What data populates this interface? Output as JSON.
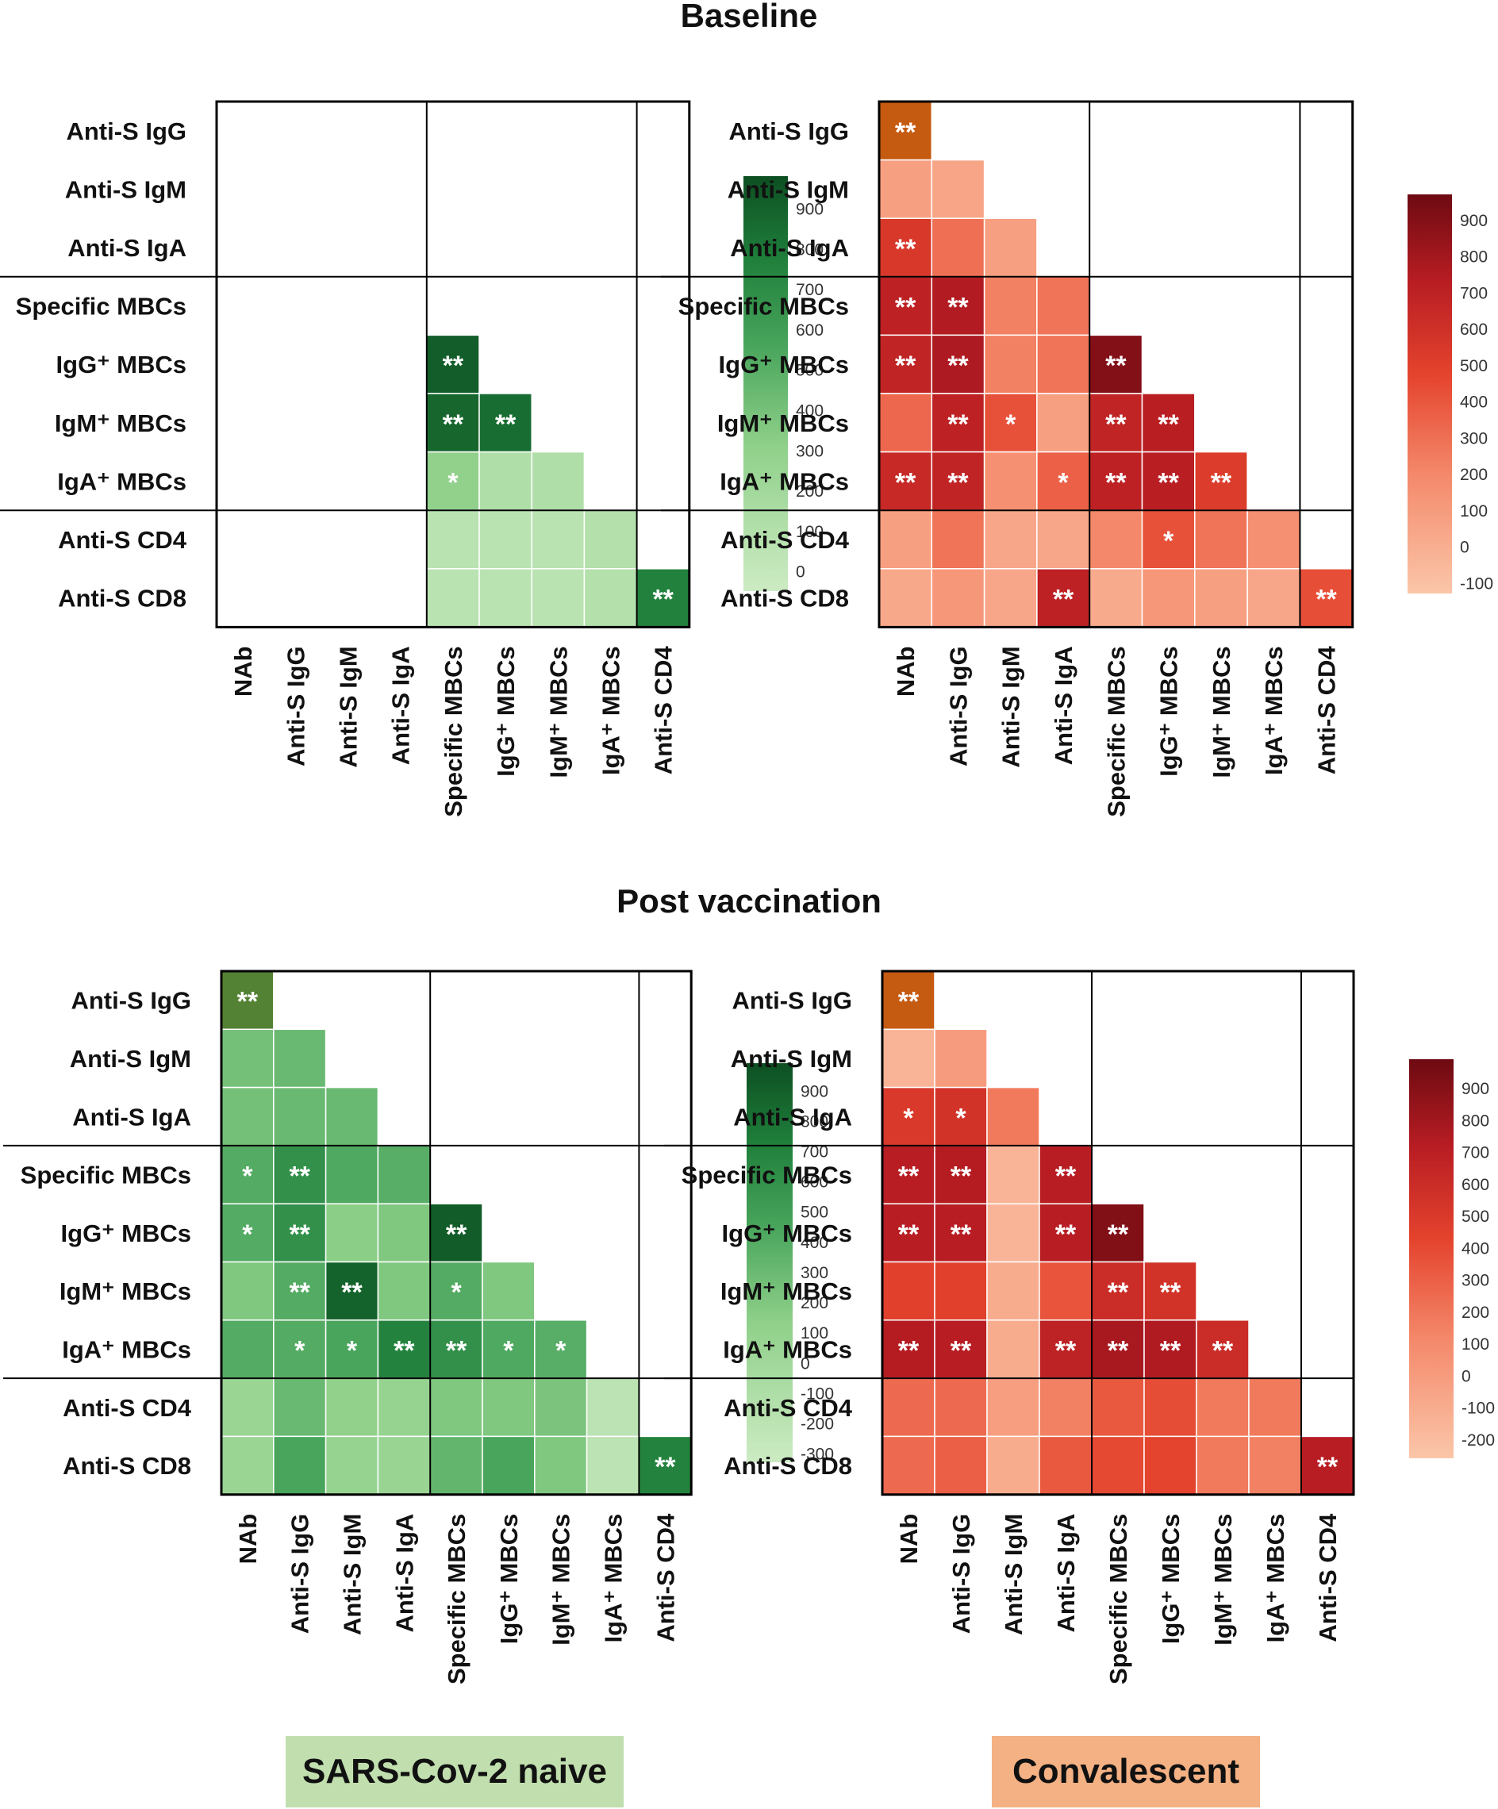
{
  "titles": {
    "baseline": "Baseline",
    "post_vaccination": "Post vaccination"
  },
  "groups": {
    "naive": {
      "label": "SARS-Cov-2 naive",
      "color": "#c1dfae"
    },
    "convalescent": {
      "label": "Convalescent",
      "color": "#f4b183"
    }
  },
  "chart_data": [
    {
      "type": "heatmap",
      "title": "Baseline – SARS-Cov-2 naive",
      "palette": "green",
      "rows": [
        "Anti-S IgG",
        "Anti-S IgM",
        "Anti-S IgA",
        "Specific MBCs",
        "IgG⁺ MBCs",
        "IgM⁺ MBCs",
        "IgA⁺ MBCs",
        "Anti-S CD4",
        "Anti-S CD8"
      ],
      "columns": [
        "NAb",
        "Anti-S IgG",
        "Anti-S IgM",
        "Anti-S IgA",
        "Specific MBCs",
        "IgG⁺ MBCs",
        "IgM⁺ MBCs",
        "IgA⁺ MBCs",
        "Anti-S CD4"
      ],
      "values": [
        [
          null,
          null,
          null,
          null,
          null,
          null,
          null,
          null,
          null
        ],
        [
          null,
          null,
          null,
          null,
          null,
          null,
          null,
          null,
          null
        ],
        [
          null,
          null,
          null,
          null,
          null,
          null,
          null,
          null,
          null
        ],
        [
          null,
          null,
          null,
          null,
          null,
          null,
          null,
          null,
          null
        ],
        [
          null,
          null,
          null,
          null,
          920,
          null,
          null,
          null,
          null
        ],
        [
          null,
          null,
          null,
          null,
          880,
          850,
          null,
          null,
          null
        ],
        [
          null,
          null,
          null,
          null,
          300,
          120,
          120,
          null,
          null
        ],
        [
          null,
          null,
          null,
          null,
          60,
          60,
          60,
          100,
          null
        ],
        [
          null,
          null,
          null,
          null,
          60,
          60,
          60,
          100,
          760
        ]
      ],
      "significance": [
        [
          "",
          "",
          "",
          "",
          "",
          "",
          "",
          "",
          ""
        ],
        [
          "",
          "",
          "",
          "",
          "",
          "",
          "",
          "",
          ""
        ],
        [
          "",
          "",
          "",
          "",
          "",
          "",
          "",
          "",
          ""
        ],
        [
          "",
          "",
          "",
          "",
          "",
          "",
          "",
          "",
          ""
        ],
        [
          "",
          "",
          "",
          "",
          "**",
          "",
          "",
          "",
          ""
        ],
        [
          "",
          "",
          "",
          "",
          "**",
          "**",
          "",
          "",
          ""
        ],
        [
          "",
          "",
          "",
          "",
          "*",
          "",
          "",
          "",
          ""
        ],
        [
          "",
          "",
          "",
          "",
          "",
          "",
          "",
          "",
          ""
        ],
        [
          "",
          "",
          "",
          "",
          "",
          "",
          "",
          "",
          "**"
        ]
      ],
      "colorbar": {
        "min": -50,
        "max": 980,
        "ticks": [
          900,
          800,
          700,
          600,
          500,
          400,
          300,
          200,
          100,
          0
        ]
      }
    },
    {
      "type": "heatmap",
      "title": "Baseline – Convalescent",
      "palette": "red",
      "rows": [
        "Anti-S IgG",
        "Anti-S IgM",
        "Anti-S IgA",
        "Specific MBCs",
        "IgG⁺ MBCs",
        "IgM⁺ MBCs",
        "IgA⁺ MBCs",
        "Anti-S CD4",
        "Anti-S CD8"
      ],
      "columns": [
        "NAb",
        "Anti-S IgG",
        "Anti-S IgM",
        "Anti-S IgA",
        "Specific MBCs",
        "IgG⁺ MBCs",
        "IgM⁺ MBCs",
        "IgA⁺ MBCs",
        "Anti-S CD4"
      ],
      "values": [
        [
          null,
          null,
          null,
          null,
          null,
          null,
          null,
          null,
          null
        ],
        [
          80,
          50,
          null,
          null,
          null,
          null,
          null,
          null,
          null
        ],
        [
          550,
          300,
          80,
          null,
          null,
          null,
          null,
          null,
          null
        ],
        [
          700,
          750,
          230,
          280,
          null,
          null,
          null,
          null,
          null
        ],
        [
          680,
          760,
          230,
          280,
          900,
          null,
          null,
          null,
          null
        ],
        [
          330,
          700,
          420,
          80,
          680,
          720,
          null,
          null,
          null
        ],
        [
          650,
          680,
          160,
          360,
          700,
          720,
          520,
          null,
          null
        ],
        [
          80,
          280,
          40,
          40,
          200,
          420,
          280,
          160,
          null
        ],
        [
          30,
          120,
          40,
          700,
          20,
          120,
          80,
          40,
          430
        ]
      ],
      "significance": [
        [
          "**",
          "",
          "",
          "",
          "",
          "",
          "",
          "",
          ""
        ],
        [
          "",
          "",
          "",
          "",
          "",
          "",
          "",
          "",
          ""
        ],
        [
          "**",
          "",
          "",
          "",
          "",
          "",
          "",
          "",
          ""
        ],
        [
          "**",
          "**",
          "",
          "",
          "",
          "",
          "",
          "",
          ""
        ],
        [
          "**",
          "**",
          "",
          "",
          "**",
          "",
          "",
          "",
          ""
        ],
        [
          "",
          "**",
          "*",
          "",
          "**",
          "**",
          "",
          "",
          ""
        ],
        [
          "**",
          "**",
          "",
          "*",
          "**",
          "**",
          "**",
          "",
          ""
        ],
        [
          "",
          "",
          "",
          "",
          "",
          "*",
          "",
          "",
          ""
        ],
        [
          "",
          "",
          "",
          "**",
          "",
          "",
          "",
          "",
          "**"
        ]
      ],
      "highlight_color": "#c55a11",
      "colorbar": {
        "min": -130,
        "max": 970,
        "ticks": [
          900,
          800,
          700,
          600,
          500,
          400,
          300,
          200,
          100,
          0,
          -100
        ]
      }
    },
    {
      "type": "heatmap",
      "title": "Post vaccination – SARS-Cov-2 naive",
      "palette": "green",
      "rows": [
        "Anti-S IgG",
        "Anti-S IgM",
        "Anti-S IgA",
        "Specific MBCs",
        "IgG⁺ MBCs",
        "IgM⁺ MBCs",
        "IgA⁺ MBCs",
        "Anti-S CD4",
        "Anti-S CD8"
      ],
      "columns": [
        "NAb",
        "Anti-S IgG",
        "Anti-S IgM",
        "Anti-S IgA",
        "Specific MBCs",
        "IgG⁺ MBCs",
        "IgM⁺ MBCs",
        "IgA⁺ MBCs",
        "Anti-S CD4"
      ],
      "values": [
        [
          null,
          null,
          null,
          null,
          null,
          null,
          null,
          null,
          null
        ],
        [
          250,
          300,
          null,
          null,
          null,
          null,
          null,
          null,
          null
        ],
        [
          250,
          300,
          300,
          null,
          null,
          null,
          null,
          null,
          null
        ],
        [
          400,
          600,
          420,
          380,
          null,
          null,
          null,
          null,
          null
        ],
        [
          400,
          600,
          150,
          200,
          920,
          null,
          null,
          null,
          null
        ],
        [
          200,
          400,
          880,
          200,
          400,
          200,
          null,
          null,
          null
        ],
        [
          400,
          400,
          450,
          700,
          600,
          420,
          380,
          null,
          null
        ],
        [
          50,
          300,
          120,
          80,
          200,
          200,
          220,
          -200,
          null
        ],
        [
          50,
          450,
          80,
          60,
          330,
          450,
          200,
          -200,
          700
        ]
      ],
      "significance": [
        [
          "**",
          "",
          "",
          "",
          "",
          "",
          "",
          "",
          ""
        ],
        [
          "",
          "",
          "",
          "",
          "",
          "",
          "",
          "",
          ""
        ],
        [
          "",
          "",
          "",
          "",
          "",
          "",
          "",
          "",
          ""
        ],
        [
          "*",
          "**",
          "",
          "",
          "",
          "",
          "",
          "",
          ""
        ],
        [
          "*",
          "**",
          "",
          "",
          "**",
          "",
          "",
          "",
          ""
        ],
        [
          "",
          "**",
          "**",
          "",
          "*",
          "",
          "",
          "",
          ""
        ],
        [
          "",
          "*",
          "*",
          "**",
          "**",
          "*",
          "*",
          "",
          ""
        ],
        [
          "",
          "",
          "",
          "",
          "",
          "",
          "",
          "",
          ""
        ],
        [
          "",
          "",
          "",
          "",
          "",
          "",
          "",
          "",
          "**"
        ]
      ],
      "highlight_color": "#548235",
      "colorbar": {
        "min": -330,
        "max": 990,
        "ticks": [
          900,
          800,
          700,
          600,
          500,
          400,
          300,
          200,
          100,
          0,
          -100,
          -200,
          -300
        ]
      }
    },
    {
      "type": "heatmap",
      "title": "Post vaccination – Convalescent",
      "palette": "red",
      "rows": [
        "Anti-S IgG",
        "Anti-S IgM",
        "Anti-S IgA",
        "Specific MBCs",
        "IgG⁺ MBCs",
        "IgM⁺ MBCs",
        "IgA⁺ MBCs",
        "Anti-S CD4",
        "Anti-S CD8"
      ],
      "columns": [
        "NAb",
        "Anti-S IgG",
        "Anti-S IgM",
        "Anti-S IgA",
        "Specific MBCs",
        "IgG⁺ MBCs",
        "IgM⁺ MBCs",
        "IgA⁺ MBCs",
        "Anti-S CD4"
      ],
      "values": [
        [
          null,
          null,
          null,
          null,
          null,
          null,
          null,
          null,
          null
        ],
        [
          -150,
          0,
          null,
          null,
          null,
          null,
          null,
          null,
          null
        ],
        [
          500,
          550,
          180,
          null,
          null,
          null,
          null,
          null,
          null
        ],
        [
          720,
          730,
          -150,
          720,
          null,
          null,
          null,
          null,
          null
        ],
        [
          720,
          720,
          -150,
          720,
          920,
          null,
          null,
          null,
          null
        ],
        [
          450,
          450,
          -100,
          350,
          600,
          550,
          null,
          null,
          null
        ],
        [
          730,
          720,
          -100,
          680,
          780,
          750,
          600,
          null,
          null
        ],
        [
          250,
          250,
          -20,
          150,
          330,
          380,
          180,
          180,
          null
        ],
        [
          250,
          300,
          -100,
          330,
          400,
          430,
          180,
          150,
          720
        ]
      ],
      "significance": [
        [
          "**",
          "",
          "",
          "",
          "",
          "",
          "",
          "",
          ""
        ],
        [
          "",
          "",
          "",
          "",
          "",
          "",
          "",
          "",
          ""
        ],
        [
          "*",
          "*",
          "",
          "",
          "",
          "",
          "",
          "",
          ""
        ],
        [
          "**",
          "**",
          "",
          "**",
          "",
          "",
          "",
          "",
          ""
        ],
        [
          "**",
          "**",
          "",
          "**",
          "**",
          "",
          "",
          "",
          ""
        ],
        [
          "",
          "",
          "",
          "",
          "**",
          "**",
          "",
          "",
          ""
        ],
        [
          "**",
          "**",
          "",
          "**",
          "**",
          "**",
          "**",
          "",
          ""
        ],
        [
          "",
          "",
          "",
          "",
          "",
          "",
          "",
          "",
          ""
        ],
        [
          "",
          "",
          "",
          "",
          "",
          "",
          "",
          "",
          "**"
        ]
      ],
      "highlight_color": "#c55a11",
      "colorbar": {
        "min": -260,
        "max": 990,
        "ticks": [
          900,
          800,
          700,
          600,
          500,
          400,
          300,
          200,
          100,
          0,
          -100,
          -200
        ]
      }
    }
  ]
}
